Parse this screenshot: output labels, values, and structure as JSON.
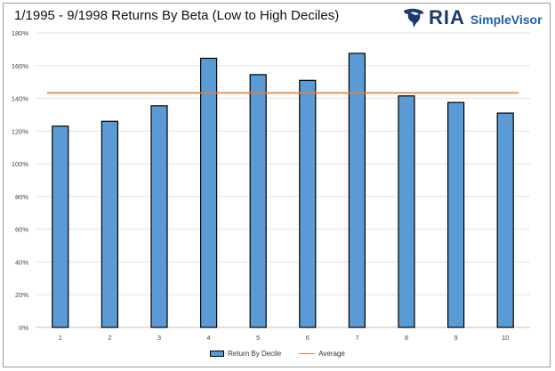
{
  "chart_data": {
    "type": "bar",
    "title": "1/1995 - 9/1998  Returns By Beta (Low to High Deciles)",
    "categories": [
      "1",
      "2",
      "3",
      "4",
      "5",
      "6",
      "7",
      "8",
      "9",
      "10"
    ],
    "series": [
      {
        "name": "Return By Decile",
        "type": "bar",
        "values": [
          1.23,
          1.26,
          1.355,
          1.645,
          1.545,
          1.51,
          1.675,
          1.415,
          1.375,
          1.31
        ],
        "color": "#5b9bd5"
      },
      {
        "name": "Average",
        "type": "line",
        "value": 1.433,
        "color": "#ed7d31"
      }
    ],
    "ylim": [
      0,
      1.8
    ],
    "yticks": [
      0,
      0.2,
      0.4,
      0.6,
      0.8,
      1.0,
      1.2,
      1.4,
      1.6,
      1.8
    ],
    "ytick_labels": [
      "0%",
      "20%",
      "40%",
      "60%",
      "80%",
      "100%",
      "120%",
      "140%",
      "160%",
      "180%"
    ],
    "grid": true,
    "legend_position": "bottom"
  },
  "logo": {
    "brand": "RIA",
    "product": "SimpleVisor",
    "icon": "eagle-icon",
    "brand_color": "#1b3a6b",
    "product_color": "#1f5fa8"
  }
}
